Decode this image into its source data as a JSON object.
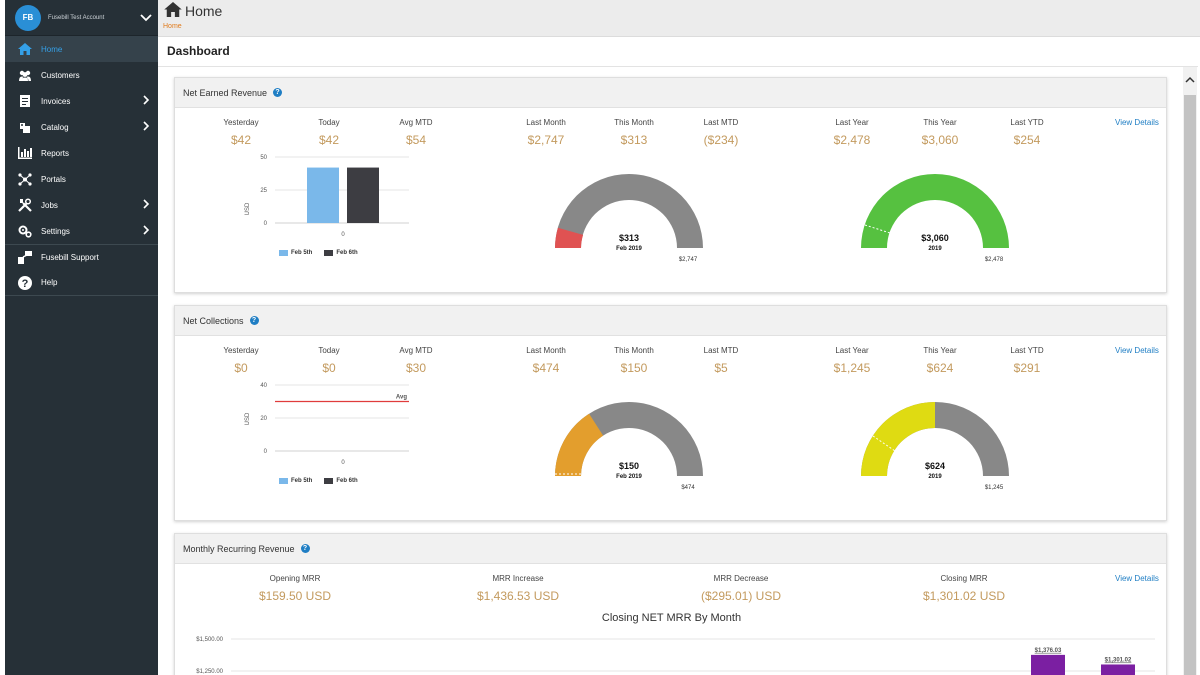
{
  "sidebar": {
    "account_initials": "FB",
    "account_name": "Fusebill Test Account",
    "items": [
      {
        "label": "Home",
        "icon": "home-icon",
        "active": true
      },
      {
        "label": "Customers",
        "icon": "users-icon"
      },
      {
        "label": "Invoices",
        "icon": "invoice-icon"
      },
      {
        "label": "Catalog",
        "icon": "catalog-icon"
      },
      {
        "label": "Reports",
        "icon": "reports-icon"
      },
      {
        "label": "Portals",
        "icon": "portals-icon"
      },
      {
        "label": "Jobs",
        "icon": "tools-icon"
      },
      {
        "label": "Settings",
        "icon": "gears-icon"
      },
      {
        "label": "Fusebill Support",
        "icon": "support-icon"
      },
      {
        "label": "Help",
        "icon": "help-icon"
      }
    ]
  },
  "header": {
    "title": "Home",
    "breadcrumb": "Home",
    "page_title": "Dashboard"
  },
  "colors": {
    "accent": "#34a0e8",
    "value": "#c39a5e",
    "link": "#1f7ec4",
    "feb5": "#7ab8ea",
    "feb6": "#3d3d42"
  },
  "net_earned": {
    "title": "Net Earned Revenue",
    "view_details": "View Details",
    "stats": [
      {
        "label": "Yesterday",
        "value": "$42"
      },
      {
        "label": "Today",
        "value": "$42"
      },
      {
        "label": "Avg MTD",
        "value": "$54"
      },
      {
        "label": "Last Month",
        "value": "$2,747"
      },
      {
        "label": "This Month",
        "value": "$313"
      },
      {
        "label": "Last MTD",
        "value": "($234)"
      },
      {
        "label": "Last Year",
        "value": "$2,478"
      },
      {
        "label": "This Year",
        "value": "$3,060"
      },
      {
        "label": "Last YTD",
        "value": "$254"
      }
    ],
    "chart": {
      "ylabel": "USD",
      "yticks": [
        "50",
        "25",
        "0"
      ],
      "xtick": "0",
      "legend": [
        "Feb 5th",
        "Feb 6th"
      ]
    },
    "gauge_month": {
      "value": "$313",
      "sub": "Feb 2019",
      "max": "$2,747"
    },
    "gauge_year": {
      "value": "$3,060",
      "sub": "2019",
      "max": "$2,478"
    }
  },
  "net_collections": {
    "title": "Net Collections",
    "view_details": "View Details",
    "stats": [
      {
        "label": "Yesterday",
        "value": "$0"
      },
      {
        "label": "Today",
        "value": "$0"
      },
      {
        "label": "Avg MTD",
        "value": "$30"
      },
      {
        "label": "Last Month",
        "value": "$474"
      },
      {
        "label": "This Month",
        "value": "$150"
      },
      {
        "label": "Last MTD",
        "value": "$5"
      },
      {
        "label": "Last Year",
        "value": "$1,245"
      },
      {
        "label": "This Year",
        "value": "$624"
      },
      {
        "label": "Last YTD",
        "value": "$291"
      }
    ],
    "chart": {
      "ylabel": "USD",
      "yticks": [
        "40",
        "20",
        "0"
      ],
      "xtick": "0",
      "avg_label": "Avg",
      "legend": [
        "Feb 5th",
        "Feb 6th"
      ]
    },
    "gauge_month": {
      "value": "$150",
      "sub": "Feb 2019",
      "max": "$474"
    },
    "gauge_year": {
      "value": "$624",
      "sub": "2019",
      "max": "$1,245"
    }
  },
  "mrr": {
    "title": "Monthly Recurring Revenue",
    "view_details": "View Details",
    "stats": [
      {
        "label": "Opening MRR",
        "value": "$159.50 USD"
      },
      {
        "label": "MRR Increase",
        "value": "$1,436.53 USD"
      },
      {
        "label": "MRR Decrease",
        "value": "($295.01) USD"
      },
      {
        "label": "Closing MRR",
        "value": "$1,301.02 USD"
      }
    ],
    "chart_title": "Closing NET MRR By Month",
    "yticks": [
      "$1,500.00",
      "$1,250.00"
    ],
    "bar_labels": [
      "$1,376.03",
      "$1,301.02"
    ]
  },
  "chart_data": [
    {
      "type": "bar",
      "categories": [
        "Feb 5th",
        "Feb 6th"
      ],
      "values": [
        42,
        42
      ],
      "ylabel": "USD",
      "ylim": [
        0,
        50
      ]
    },
    {
      "type": "bar",
      "categories": [
        "Feb 5th",
        "Feb 6th"
      ],
      "values": [
        0,
        0
      ],
      "ylabel": "USD",
      "ylim": [
        0,
        40
      ],
      "avg": 30
    },
    {
      "type": "bar",
      "values": [
        1376.03,
        1301.02
      ],
      "ylim": [
        1250,
        1500
      ]
    }
  ]
}
